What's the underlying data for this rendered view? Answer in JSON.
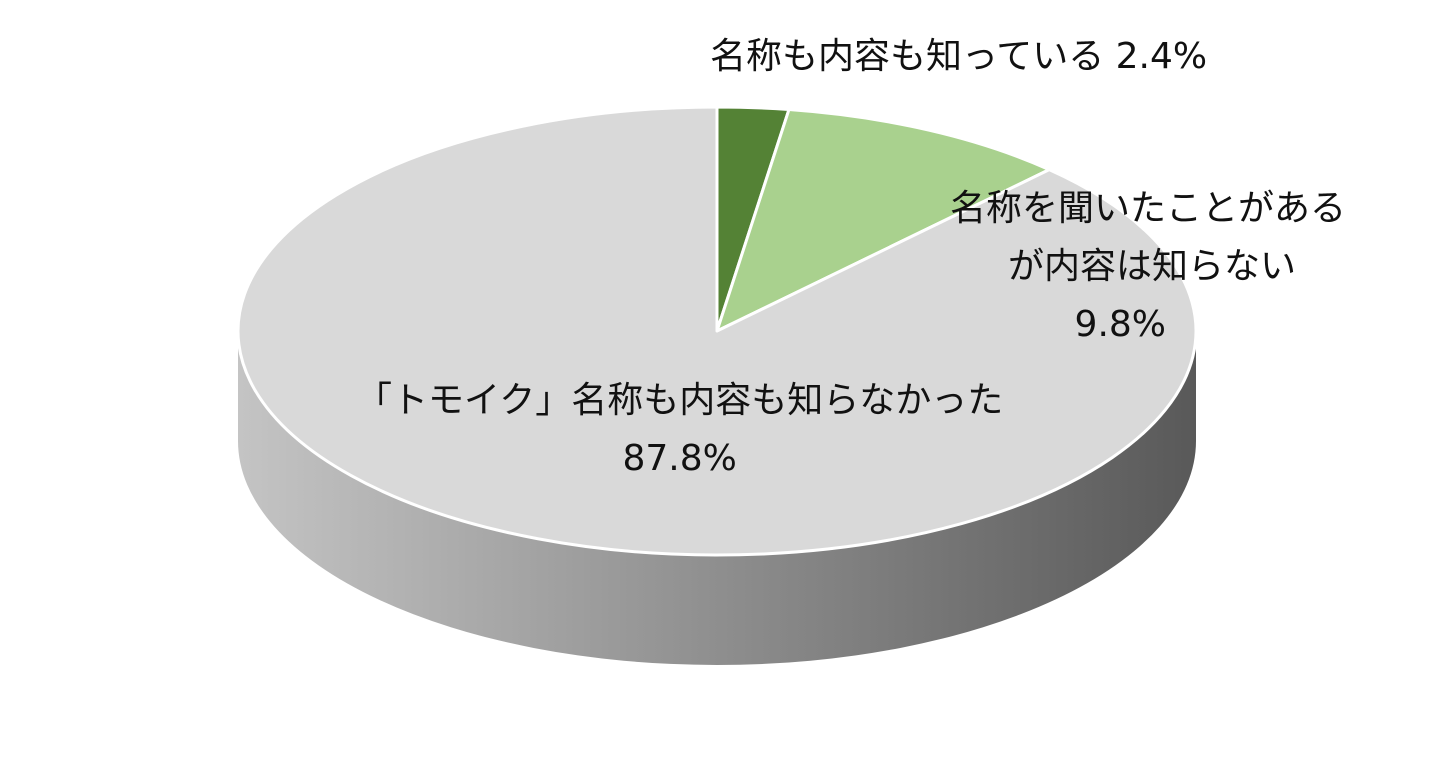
{
  "chart_data": {
    "type": "pie",
    "style": "3d",
    "start_angle": "12 o'clock",
    "direction": "clockwise",
    "slices": [
      {
        "label": "名称も内容も知っている",
        "value": 2.4,
        "value_label": "2.4%",
        "color": "#548235"
      },
      {
        "label": "名称を聞いたことがあるが内容は知らない",
        "label_lines": [
          "名称を聞いたことがある",
          "が内容は知らない"
        ],
        "value": 9.8,
        "value_label": "9.8%",
        "color": "#a9d18e"
      },
      {
        "label": "「トモイク」名称も内容も知らなかった",
        "value": 87.8,
        "value_label": "87.8%",
        "color": "#d9d9d9"
      }
    ],
    "side_gradient": [
      "#c4c4c4",
      "#595959"
    ],
    "legend": "none"
  }
}
